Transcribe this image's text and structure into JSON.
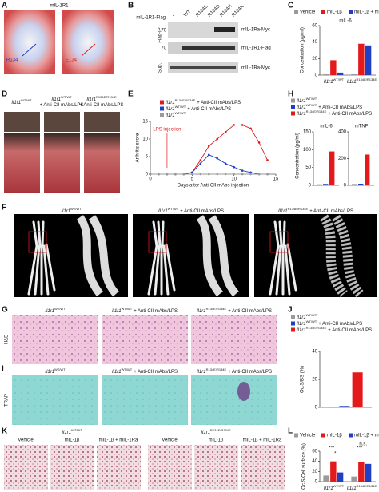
{
  "A": {
    "letter": "A",
    "title": "mIL-1R1",
    "left_label": "R134",
    "right_label": "E134"
  },
  "B": {
    "letter": "B",
    "construct": "mIL-1R1-Flag",
    "lanes": [
      "-",
      "WT",
      "R134E",
      "R134D",
      "R134H",
      "R134K"
    ],
    "row_labels": [
      "Flag-IP",
      "Sup."
    ],
    "markers": [
      "70",
      "70"
    ],
    "bands": [
      "mIL-1Ra-Myc",
      "mIL-1R1-Flag",
      "mIL-1Ra-Myc"
    ]
  },
  "C": {
    "letter": "C",
    "chart": {
      "title": "mIL-6",
      "ylabel": "Concentration (pg/ml)",
      "groups": [
        {
          "gene": "Il1r1",
          "allele": "WT/WT"
        },
        {
          "gene": "Il1r1",
          "allele": "R134E/R134E"
        }
      ],
      "series": [
        {
          "name": "Vehicle",
          "color": "#9a9a9a",
          "values": [
            1,
            1
          ]
        },
        {
          "name": "mIL-1β",
          "color": "#e3191c",
          "values": [
            18,
            38
          ]
        },
        {
          "name": "mIL-1β + mIL-1Ra",
          "color": "#1f3fc4",
          "values": [
            3,
            36
          ]
        }
      ],
      "ylim": [
        0,
        60
      ],
      "yticks": [
        0,
        20,
        40,
        60
      ]
    }
  },
  "D": {
    "letter": "D",
    "labels": [
      {
        "gene": "Il1r1",
        "allele": "WT/WT"
      },
      {
        "gene": "Il1r1",
        "allele": "WT/WT",
        "treatment": "+ Anti-CII mAbs/LPS"
      },
      {
        "gene": "Il1r1",
        "allele": "R134E/R134E",
        "treatment": "+ Anti-CII mAbs/LPS"
      }
    ]
  },
  "E": {
    "letter": "E",
    "chart": {
      "ylabel": "Arthritis score",
      "xlabel": "Days after Anti-CII mAbs injection",
      "annotation": "LPS injection",
      "x": [
        0,
        1,
        2,
        3,
        4,
        5,
        6,
        7,
        8,
        9,
        10,
        11,
        12,
        13,
        14
      ],
      "series": [
        {
          "gene": "Il1r1",
          "allele": "R134E/R134E",
          "treatment": "+ Anti-CII mAbs/LPS",
          "color": "#e3191c",
          "values": [
            0,
            0,
            0,
            0,
            0,
            0.5,
            4,
            8,
            10,
            12,
            14,
            14,
            13,
            9,
            4
          ]
        },
        {
          "gene": "Il1r1",
          "allele": "WT/WT",
          "treatment": "+ Anti-CII mAbs/LPS",
          "color": "#1f3fc4",
          "values": [
            0,
            0,
            0,
            0,
            0,
            0.5,
            3,
            5.5,
            4.5,
            3,
            2,
            1,
            0.5,
            0,
            0
          ]
        },
        {
          "gene": "Il1r1",
          "allele": "WT/WT",
          "color": "#9a9a9a",
          "values": [
            0,
            0,
            0,
            0,
            0,
            0,
            0,
            0,
            0,
            0,
            0,
            0,
            0,
            0,
            0
          ]
        }
      ],
      "xlim": [
        0,
        15
      ],
      "xticks": [
        0,
        5,
        10,
        15
      ],
      "ylim": [
        0,
        15
      ],
      "yticks": [
        0,
        5,
        10,
        15
      ]
    }
  },
  "H": {
    "letter": "H",
    "ylabel": "Concentration (pg/ml)",
    "legend": [
      {
        "gene": "Il1r1",
        "allele": "WT/WT",
        "color": "#9a9a9a"
      },
      {
        "gene": "Il1r1",
        "allele": "WT/WT",
        "treatment": "+ Anti-CII mAbs/LPS",
        "color": "#1f3fc4"
      },
      {
        "gene": "Il1r1",
        "allele": "R134E/R134E",
        "treatment": "+ Anti-CII mAbs/LPS",
        "color": "#e3191c"
      }
    ],
    "charts": [
      {
        "title": "mIL-6",
        "values": [
          3,
          4,
          95
        ],
        "ylim": [
          0,
          150
        ],
        "yticks": [
          0,
          50,
          100,
          150
        ]
      },
      {
        "title": "mTNF",
        "values": [
          10,
          12,
          230
        ],
        "ylim": [
          0,
          400
        ],
        "yticks": [
          0,
          200,
          400
        ]
      }
    ]
  },
  "F": {
    "letter": "F",
    "labels": [
      {
        "gene": "Il1r1",
        "allele": "WT/WT"
      },
      {
        "gene": "Il1r1",
        "allele": "WT/WT",
        "treatment": "+ Anti-CII mAbs/LPS"
      },
      {
        "gene": "Il1r1",
        "allele": "R134E/R134E",
        "treatment": "+ Anti-CII mAbs/LPS"
      }
    ]
  },
  "G": {
    "letter": "G",
    "stain": "H&E",
    "labels": [
      {
        "gene": "Il1r1",
        "allele": "WT/WT"
      },
      {
        "gene": "Il1r1",
        "allele": "WT/WT",
        "treatment": "+ Anti-CII mAbs/LPS"
      },
      {
        "gene": "Il1r1",
        "allele": "R134E/R134E",
        "treatment": "+ Anti-CII mAbs/LPS"
      }
    ]
  },
  "I": {
    "letter": "I",
    "stain": "TRAP",
    "labels": [
      {
        "gene": "Il1r1",
        "allele": "WT/WT"
      },
      {
        "gene": "Il1r1",
        "allele": "WT/WT",
        "treatment": "+ Anti-CII mAbs/LPS"
      },
      {
        "gene": "Il1r1",
        "allele": "R134E/R134E",
        "treatment": "+ Anti-CII mAbs/LPS"
      }
    ]
  },
  "J": {
    "letter": "J",
    "ylabel": "Oc.S/BS (%)",
    "legend": [
      {
        "gene": "Il1r1",
        "allele": "WT/WT",
        "color": "#9a9a9a"
      },
      {
        "gene": "Il1r1",
        "allele": "WT/WT",
        "treatment": "+ Anti-CII mAbs/LPS",
        "color": "#1f3fc4"
      },
      {
        "gene": "Il1r1",
        "allele": "R134E/R134E",
        "treatment": "+ Anti-CII mAbs/LPS",
        "color": "#e3191c"
      }
    ],
    "values": [
      0.5,
      1,
      25
    ],
    "ylim": [
      0,
      40
    ],
    "yticks": [
      0,
      20,
      40
    ]
  },
  "K": {
    "letter": "K",
    "groups": [
      {
        "gene": "Il1r1",
        "allele": "WT/WT"
      },
      {
        "gene": "Il1r1",
        "allele": "R134E/R134E"
      }
    ],
    "conditions": [
      "Vehicle",
      "mIL-1β",
      "mIL-1β + mIL-1Ra"
    ]
  },
  "L": {
    "letter": "L",
    "chart": {
      "ylabel": "Oc.S/Cell surface (%)",
      "groups": [
        {
          "gene": "Il1r1",
          "allele": "WT/WT"
        },
        {
          "gene": "Il1r1",
          "allele": "R134E/R134E"
        }
      ],
      "series": [
        {
          "name": "Vehicle",
          "color": "#9a9a9a",
          "values": [
            12,
            10
          ]
        },
        {
          "name": "mIL-1β",
          "color": "#e3191c",
          "values": [
            40,
            38
          ]
        },
        {
          "name": "mIL-1β + mIL-1Ra",
          "color": "#1f3fc4",
          "values": [
            18,
            35
          ]
        }
      ],
      "ylim": [
        0,
        60
      ],
      "yticks": [
        0,
        20,
        40,
        60
      ],
      "significance": [
        "***",
        "***",
        "*",
        "n.s."
      ]
    }
  }
}
